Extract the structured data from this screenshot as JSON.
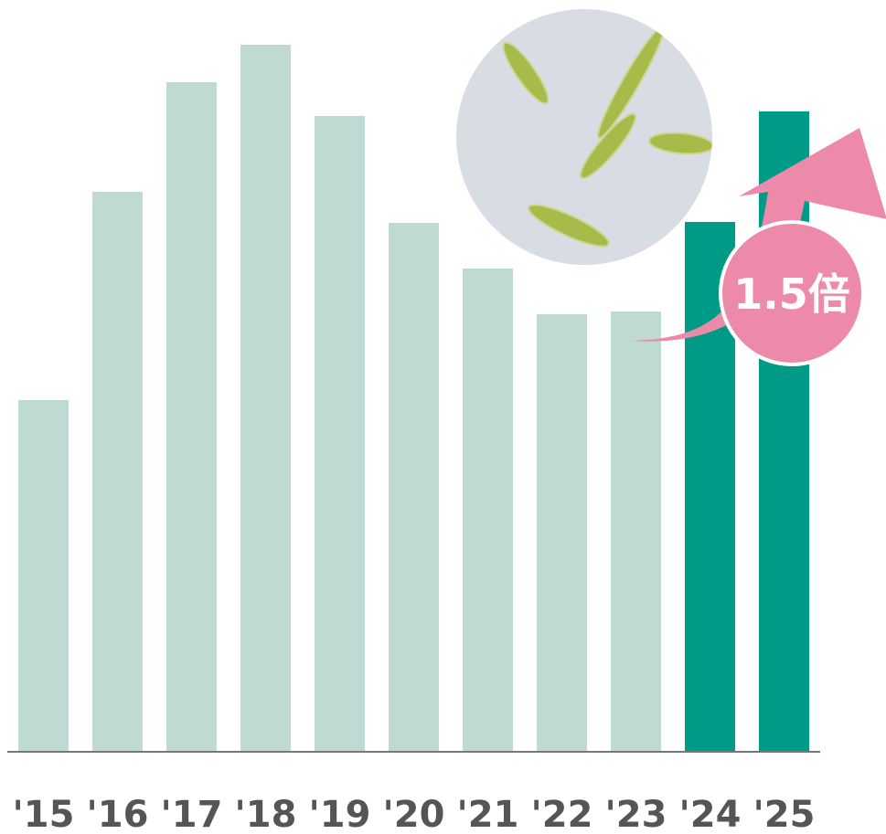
{
  "chart_data": {
    "type": "bar",
    "categories": [
      "'15",
      "'16",
      "'17",
      "'18",
      "'19",
      "'20",
      "'21",
      "'22",
      "'23",
      "'24",
      "'25"
    ],
    "values": [
      385,
      613,
      733,
      774,
      696,
      579,
      529,
      479,
      482,
      580,
      701
    ],
    "colors": [
      "#bedad3",
      "#bedad3",
      "#bedad3",
      "#bedad3",
      "#bedad3",
      "#bedad3",
      "#bedad3",
      "#bedad3",
      "#bedad3",
      "#009b86",
      "#009b86"
    ],
    "ylim": [
      0,
      823
    ],
    "annotation": "1.5倍"
  }
}
